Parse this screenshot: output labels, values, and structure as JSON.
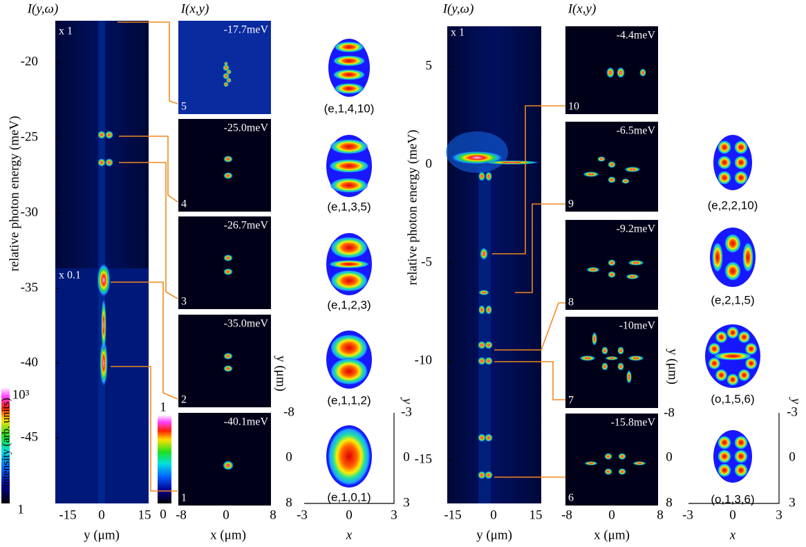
{
  "left": {
    "spectrum_label": "I(y,ω)",
    "image_label": "I(x,y)",
    "y_axis_label": "relative photon energy (meV)",
    "y_ticks": [
      "-20",
      "-25",
      "-30",
      "-35",
      "-40",
      "-45"
    ],
    "x_ticks": [
      "-15",
      "0",
      "15"
    ],
    "x_axis_label": "y (μm)",
    "scale_labels": [
      "x 1",
      "x 0.1"
    ],
    "colorbar_intensity": {
      "label": "intensity (arb. units)",
      "top": "10³",
      "bottom": "1"
    },
    "colorbar_image": {
      "top": "1",
      "bottom": "0"
    },
    "images": [
      {
        "energy": "-17.7meV",
        "index": "5"
      },
      {
        "energy": "-25.0meV",
        "index": "4"
      },
      {
        "energy": "-26.7meV",
        "index": "3"
      },
      {
        "energy": "-35.0meV",
        "index": "2"
      },
      {
        "energy": "-40.1meV",
        "index": "1"
      }
    ],
    "image_x_ticks": [
      "-8",
      "0",
      "8"
    ],
    "image_x_label": "x (μm)",
    "image_y_ticks": [
      "-8",
      "0",
      "8"
    ],
    "image_y_label": "y (μm)",
    "modes": [
      "(e,1,4,10)",
      "(e,1,3,5)",
      "(e,1,2,3)",
      "(e,1,1,2)",
      "(e,1,0,1)"
    ],
    "mode_x_ticks": [
      "-3",
      "0",
      "3"
    ],
    "mode_x_label": "x",
    "mode_y_ticks": [
      "-3",
      "0",
      "3"
    ],
    "mode_y_label": "y"
  },
  "right": {
    "spectrum_label": "I(y,ω)",
    "image_label": "I(x,y)",
    "y_axis_label": "relative photon energy (meV)",
    "y_ticks": [
      "5",
      "0",
      "-5",
      "-10",
      "-15"
    ],
    "x_ticks": [
      "-15",
      "0",
      "15"
    ],
    "x_axis_label": "y (μm)",
    "scale_label": "x 1",
    "images": [
      {
        "energy": "-4.4meV",
        "index": "10"
      },
      {
        "energy": "-6.5meV",
        "index": "9"
      },
      {
        "energy": "-9.2meV",
        "index": "8"
      },
      {
        "energy": "-10meV",
        "index": "7"
      },
      {
        "energy": "-15.8meV",
        "index": "6"
      }
    ],
    "image_x_ticks": [
      "-8",
      "0",
      "8"
    ],
    "image_x_label": "x (μm)",
    "image_y_ticks": [
      "-8",
      "0",
      "8"
    ],
    "image_y_label": "y (μm)",
    "modes": [
      "(e,2,2,10)",
      "(e,2,1,5)",
      "(o,1,5,6)",
      "(o,1,3,6)"
    ],
    "mode_x_ticks": [
      "-3",
      "0",
      "3"
    ],
    "mode_x_label": "x",
    "mode_y_ticks": [
      "-3",
      "0",
      "3"
    ],
    "mode_y_label": "y"
  }
}
